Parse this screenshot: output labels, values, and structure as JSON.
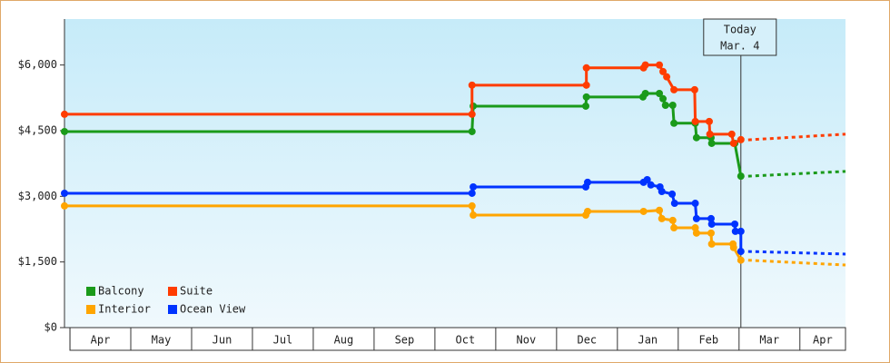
{
  "chart_data": {
    "type": "line",
    "xlim": [
      -0.09,
      12.75
    ],
    "xticks": [
      {
        "value": 0,
        "label": "Apr"
      },
      {
        "value": 1,
        "label": "May"
      },
      {
        "value": 2,
        "label": "Jun"
      },
      {
        "value": 3,
        "label": "Jul"
      },
      {
        "value": 4,
        "label": "Aug"
      },
      {
        "value": 5,
        "label": "Sep"
      },
      {
        "value": 6,
        "label": "Oct"
      },
      {
        "value": 7,
        "label": "Nov"
      },
      {
        "value": 8,
        "label": "Dec"
      },
      {
        "value": 9,
        "label": "Jan"
      },
      {
        "value": 10,
        "label": "Feb"
      },
      {
        "value": 11,
        "label": "Mar"
      },
      {
        "value": 12,
        "label": "Apr"
      }
    ],
    "ylim": [
      0,
      7050
    ],
    "yticks": [
      {
        "value": 0,
        "label": "$0"
      },
      {
        "value": 1500,
        "label": "$1,500"
      },
      {
        "value": 3000,
        "label": "$3,000"
      },
      {
        "value": 4500,
        "label": "$4,500"
      },
      {
        "value": 6000,
        "label": "$6,000"
      }
    ],
    "legend": "lower left",
    "annotation": {
      "x": 11.03,
      "text": [
        "Today",
        "Mar. 4"
      ]
    },
    "series": [
      {
        "name": "Balcony",
        "color": "#1a9a1a",
        "x": [
          -0.09,
          6.61,
          6.63,
          8.48,
          8.49,
          9.42,
          9.46,
          9.69,
          9.75,
          9.79,
          9.91,
          9.93,
          10.28,
          10.3,
          10.54,
          10.55,
          10.93,
          11.03
        ],
        "values": [
          4480,
          4480,
          5060,
          5060,
          5270,
          5270,
          5350,
          5350,
          5230,
          5080,
          5080,
          4670,
          4670,
          4340,
          4340,
          4210,
          4210,
          3460
        ],
        "forecast_x": [
          11.15,
          12.75
        ],
        "forecast_values": [
          3460,
          3570
        ]
      },
      {
        "name": "Suite",
        "color": "#ff3c00",
        "x": [
          -0.09,
          6.61,
          6.61,
          8.49,
          8.49,
          9.43,
          9.46,
          9.69,
          9.75,
          9.81,
          9.93,
          10.27,
          10.28,
          10.51,
          10.52,
          10.88,
          10.91,
          11.03
        ],
        "values": [
          4875,
          4875,
          5540,
          5540,
          5935,
          5935,
          6000,
          6000,
          5850,
          5730,
          5435,
          5435,
          4710,
          4710,
          4420,
          4420,
          4210,
          4295
        ],
        "forecast_x": [
          11.15,
          12.75
        ],
        "forecast_values": [
          4290,
          4420
        ]
      },
      {
        "name": "Interior",
        "color": "#ffa500",
        "x": [
          -0.09,
          6.61,
          6.63,
          8.48,
          8.51,
          9.43,
          9.69,
          9.73,
          9.91,
          9.93,
          10.28,
          10.3,
          10.54,
          10.55,
          10.9,
          10.91,
          11.03
        ],
        "values": [
          2780,
          2780,
          2570,
          2570,
          2655,
          2655,
          2680,
          2490,
          2450,
          2280,
          2280,
          2160,
          2160,
          1910,
          1910,
          1830,
          1540
        ],
        "forecast_x": [
          11.15,
          12.75
        ],
        "forecast_values": [
          1540,
          1430
        ]
      },
      {
        "name": "Ocean View",
        "color": "#0033ff",
        "x": [
          -0.09,
          6.61,
          6.63,
          8.48,
          8.51,
          9.43,
          9.49,
          9.55,
          9.7,
          9.73,
          9.9,
          9.94,
          10.28,
          10.3,
          10.54,
          10.55,
          10.93,
          10.94,
          11.03,
          11.03
        ],
        "values": [
          3070,
          3070,
          3215,
          3215,
          3320,
          3320,
          3380,
          3260,
          3215,
          3110,
          3050,
          2840,
          2840,
          2490,
          2490,
          2365,
          2365,
          2200,
          2200,
          1740
        ],
        "forecast_x": [
          11.15,
          12.75
        ],
        "forecast_values": [
          1740,
          1680
        ]
      }
    ]
  }
}
